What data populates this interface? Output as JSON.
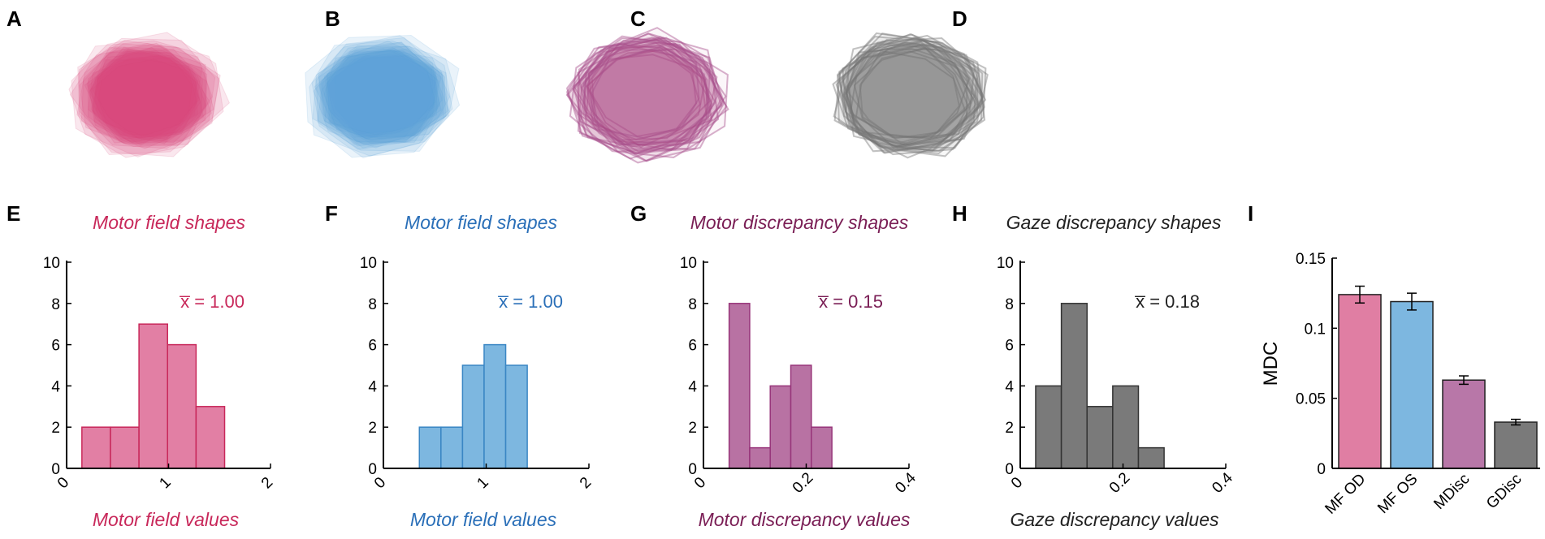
{
  "panels": {
    "A": "A",
    "B": "B",
    "C": "C",
    "D": "D",
    "E": "E",
    "F": "F",
    "G": "G",
    "H": "H",
    "I": "I"
  },
  "colors": {
    "motor_od": "#d6497a",
    "motor_os": "#5aa4d6",
    "motor_disc": "#a8528f",
    "gaze_disc": "#7a7a7a",
    "cap_od": "#c8285a",
    "cap_os": "#2a6fb8",
    "cap_md": "#7a1e55",
    "cap_gd": "#222222"
  },
  "shapes": {
    "A": {
      "caption": "Motor field shapes",
      "color": "#d6497a",
      "filled": true
    },
    "B": {
      "caption": "Motor field shapes",
      "color": "#5aa4d6",
      "filled": true
    },
    "C": {
      "caption": "Motor discrepancy shapes",
      "color": "#a8528f",
      "filled": false
    },
    "D": {
      "caption": "Gaze discrepancy shapes",
      "color": "#7a7a7a",
      "filled": false
    }
  },
  "chart_data": [
    {
      "type": "bar",
      "id": "E",
      "title": "",
      "xlabel": "Motor field values",
      "ylabel": "",
      "bin_edges": [
        0.15,
        0.43,
        0.71,
        0.99,
        1.27,
        1.55
      ],
      "values": [
        2,
        2,
        7,
        6,
        3
      ],
      "xlim": [
        0,
        2
      ],
      "ylim": [
        0,
        10
      ],
      "xticks": [
        0,
        1,
        2
      ],
      "xtick_labels": [
        "0",
        "1",
        "2"
      ],
      "yticks": [
        0,
        2,
        4,
        6,
        8,
        10
      ],
      "ytick_labels": [
        "0",
        "2",
        "4",
        "6",
        "8",
        "10"
      ],
      "mean_label": "x̅ = 1.00",
      "color": "#e27fa4",
      "edge": "#c8285a",
      "text_color": "#c8285a"
    },
    {
      "type": "bar",
      "id": "F",
      "title": "",
      "xlabel": "Motor field values",
      "ylabel": "",
      "bin_edges": [
        0.35,
        0.56,
        0.77,
        0.98,
        1.19,
        1.4
      ],
      "values": [
        2,
        2,
        5,
        6,
        5
      ],
      "xlim": [
        0,
        2
      ],
      "ylim": [
        0,
        10
      ],
      "xticks": [
        0,
        1,
        2
      ],
      "xtick_labels": [
        "0",
        "1",
        "2"
      ],
      "yticks": [
        0,
        2,
        4,
        6,
        8,
        10
      ],
      "ytick_labels": [
        "0",
        "2",
        "4",
        "6",
        "8",
        "10"
      ],
      "mean_label": "x̅ = 1.00",
      "color": "#7db7e0",
      "edge": "#3a86c4",
      "text_color": "#2a6fb8"
    },
    {
      "type": "bar",
      "id": "G",
      "title": "",
      "xlabel": "Motor discrepancy values",
      "ylabel": "",
      "bin_edges": [
        0.05,
        0.09,
        0.13,
        0.17,
        0.21,
        0.25
      ],
      "values": [
        8,
        1,
        4,
        5,
        2
      ],
      "xlim": [
        0,
        0.4
      ],
      "ylim": [
        0,
        10
      ],
      "xticks": [
        0,
        0.2,
        0.4
      ],
      "xtick_labels": [
        "0",
        "0.2",
        "0.4"
      ],
      "yticks": [
        0,
        2,
        4,
        6,
        8,
        10
      ],
      "ytick_labels": [
        "0",
        "2",
        "4",
        "6",
        "8",
        "10"
      ],
      "mean_label": "x̅ = 0.15",
      "color": "#b872a3",
      "edge": "#97357a",
      "text_color": "#7a1e55"
    },
    {
      "type": "bar",
      "id": "H",
      "title": "",
      "xlabel": "Gaze discrepancy values",
      "ylabel": "",
      "bin_edges": [
        0.03,
        0.08,
        0.13,
        0.18,
        0.23,
        0.28
      ],
      "values": [
        4,
        8,
        3,
        4,
        1
      ],
      "xlim": [
        0,
        0.4
      ],
      "ylim": [
        0,
        10
      ],
      "xticks": [
        0,
        0.2,
        0.4
      ],
      "xtick_labels": [
        "0",
        "0.2",
        "0.4"
      ],
      "yticks": [
        0,
        2,
        4,
        6,
        8,
        10
      ],
      "ytick_labels": [
        "0",
        "2",
        "4",
        "6",
        "8",
        "10"
      ],
      "mean_label": "x̅ = 0.18",
      "color": "#7a7a7a",
      "edge": "#333333",
      "text_color": "#222222"
    },
    {
      "type": "bar",
      "id": "I",
      "title": "",
      "xlabel": "",
      "ylabel": "MDC",
      "categories": [
        "MF OD",
        "MF OS",
        "MDisc",
        "GDisc"
      ],
      "values": [
        0.124,
        0.119,
        0.063,
        0.033
      ],
      "errors": [
        0.006,
        0.006,
        0.003,
        0.002
      ],
      "colors": [
        "#e07ea3",
        "#7db7e0",
        "#b877a8",
        "#7a7a7a"
      ],
      "ylim": [
        0,
        0.15
      ],
      "yticks": [
        0,
        0.05,
        0.1,
        0.15
      ],
      "ytick_labels": [
        "0",
        "0.05",
        "0.1",
        "0.15"
      ]
    }
  ]
}
